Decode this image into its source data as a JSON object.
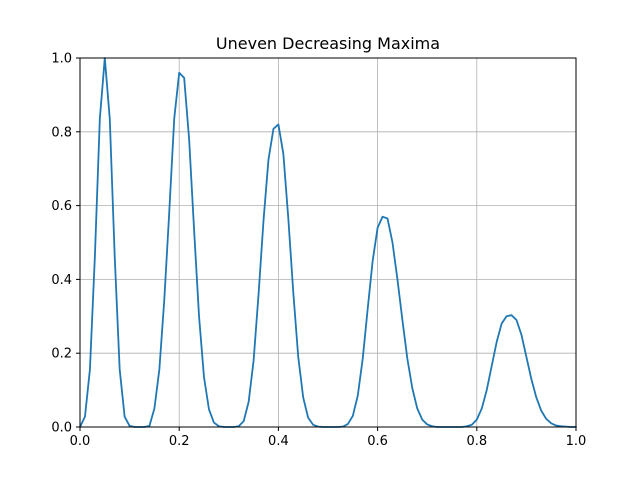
{
  "chart_data": {
    "type": "line",
    "title": "Uneven Decreasing Maxima",
    "xlabel": "",
    "ylabel": "",
    "xlim": [
      0.0,
      1.0
    ],
    "ylim": [
      0.0,
      1.0
    ],
    "x_ticks": [
      "0.0",
      "0.2",
      "0.4",
      "0.6",
      "0.8",
      "1.0"
    ],
    "y_ticks": [
      "0.0",
      "0.2",
      "0.4",
      "0.6",
      "0.8",
      "1.0"
    ],
    "grid": true,
    "legend": "none",
    "series": [
      {
        "color": "#1f77b4",
        "x": [
          0.0,
          0.01,
          0.02,
          0.03,
          0.04,
          0.05,
          0.06,
          0.07,
          0.08,
          0.09,
          0.1,
          0.11,
          0.12,
          0.13,
          0.14,
          0.15,
          0.16,
          0.17,
          0.18,
          0.19,
          0.2,
          0.21,
          0.22,
          0.23,
          0.24,
          0.25,
          0.26,
          0.27,
          0.28,
          0.29,
          0.3,
          0.31,
          0.32,
          0.33,
          0.34,
          0.35,
          0.36,
          0.37,
          0.38,
          0.39,
          0.4,
          0.41,
          0.42,
          0.43,
          0.44,
          0.45,
          0.46,
          0.47,
          0.48,
          0.49,
          0.5,
          0.51,
          0.52,
          0.53,
          0.54,
          0.55,
          0.56,
          0.57,
          0.58,
          0.59,
          0.6,
          0.61,
          0.62,
          0.63,
          0.64,
          0.65,
          0.66,
          0.67,
          0.68,
          0.69,
          0.7,
          0.71,
          0.72,
          0.73,
          0.74,
          0.75,
          0.76,
          0.77,
          0.78,
          0.79,
          0.8,
          0.81,
          0.82,
          0.83,
          0.84,
          0.85,
          0.86,
          0.87,
          0.88,
          0.89,
          0.9,
          0.91,
          0.92,
          0.93,
          0.94,
          0.95,
          0.96,
          0.97,
          0.98,
          0.99,
          1.0
        ],
        "values": [
          0.0,
          0.028,
          0.156,
          0.462,
          0.836,
          1.0,
          0.836,
          0.462,
          0.156,
          0.028,
          0.003,
          0.0,
          0.0,
          0.0,
          0.003,
          0.05,
          0.156,
          0.346,
          0.584,
          0.836,
          0.96,
          0.946,
          0.78,
          0.535,
          0.3,
          0.135,
          0.048,
          0.012,
          0.002,
          0.0,
          0.0,
          0.0,
          0.002,
          0.016,
          0.068,
          0.18,
          0.36,
          0.56,
          0.725,
          0.808,
          0.82,
          0.74,
          0.565,
          0.365,
          0.19,
          0.08,
          0.025,
          0.006,
          0.001,
          0.0,
          0.0,
          0.0,
          0.0,
          0.001,
          0.008,
          0.03,
          0.085,
          0.185,
          0.32,
          0.45,
          0.54,
          0.57,
          0.565,
          0.5,
          0.4,
          0.29,
          0.185,
          0.105,
          0.05,
          0.02,
          0.007,
          0.002,
          0.0,
          0.0,
          0.0,
          0.0,
          0.0,
          0.0,
          0.002,
          0.006,
          0.02,
          0.05,
          0.1,
          0.165,
          0.23,
          0.28,
          0.3,
          0.303,
          0.29,
          0.25,
          0.19,
          0.13,
          0.08,
          0.044,
          0.022,
          0.01,
          0.004,
          0.002,
          0.001,
          0.0,
          0.0
        ]
      }
    ]
  }
}
